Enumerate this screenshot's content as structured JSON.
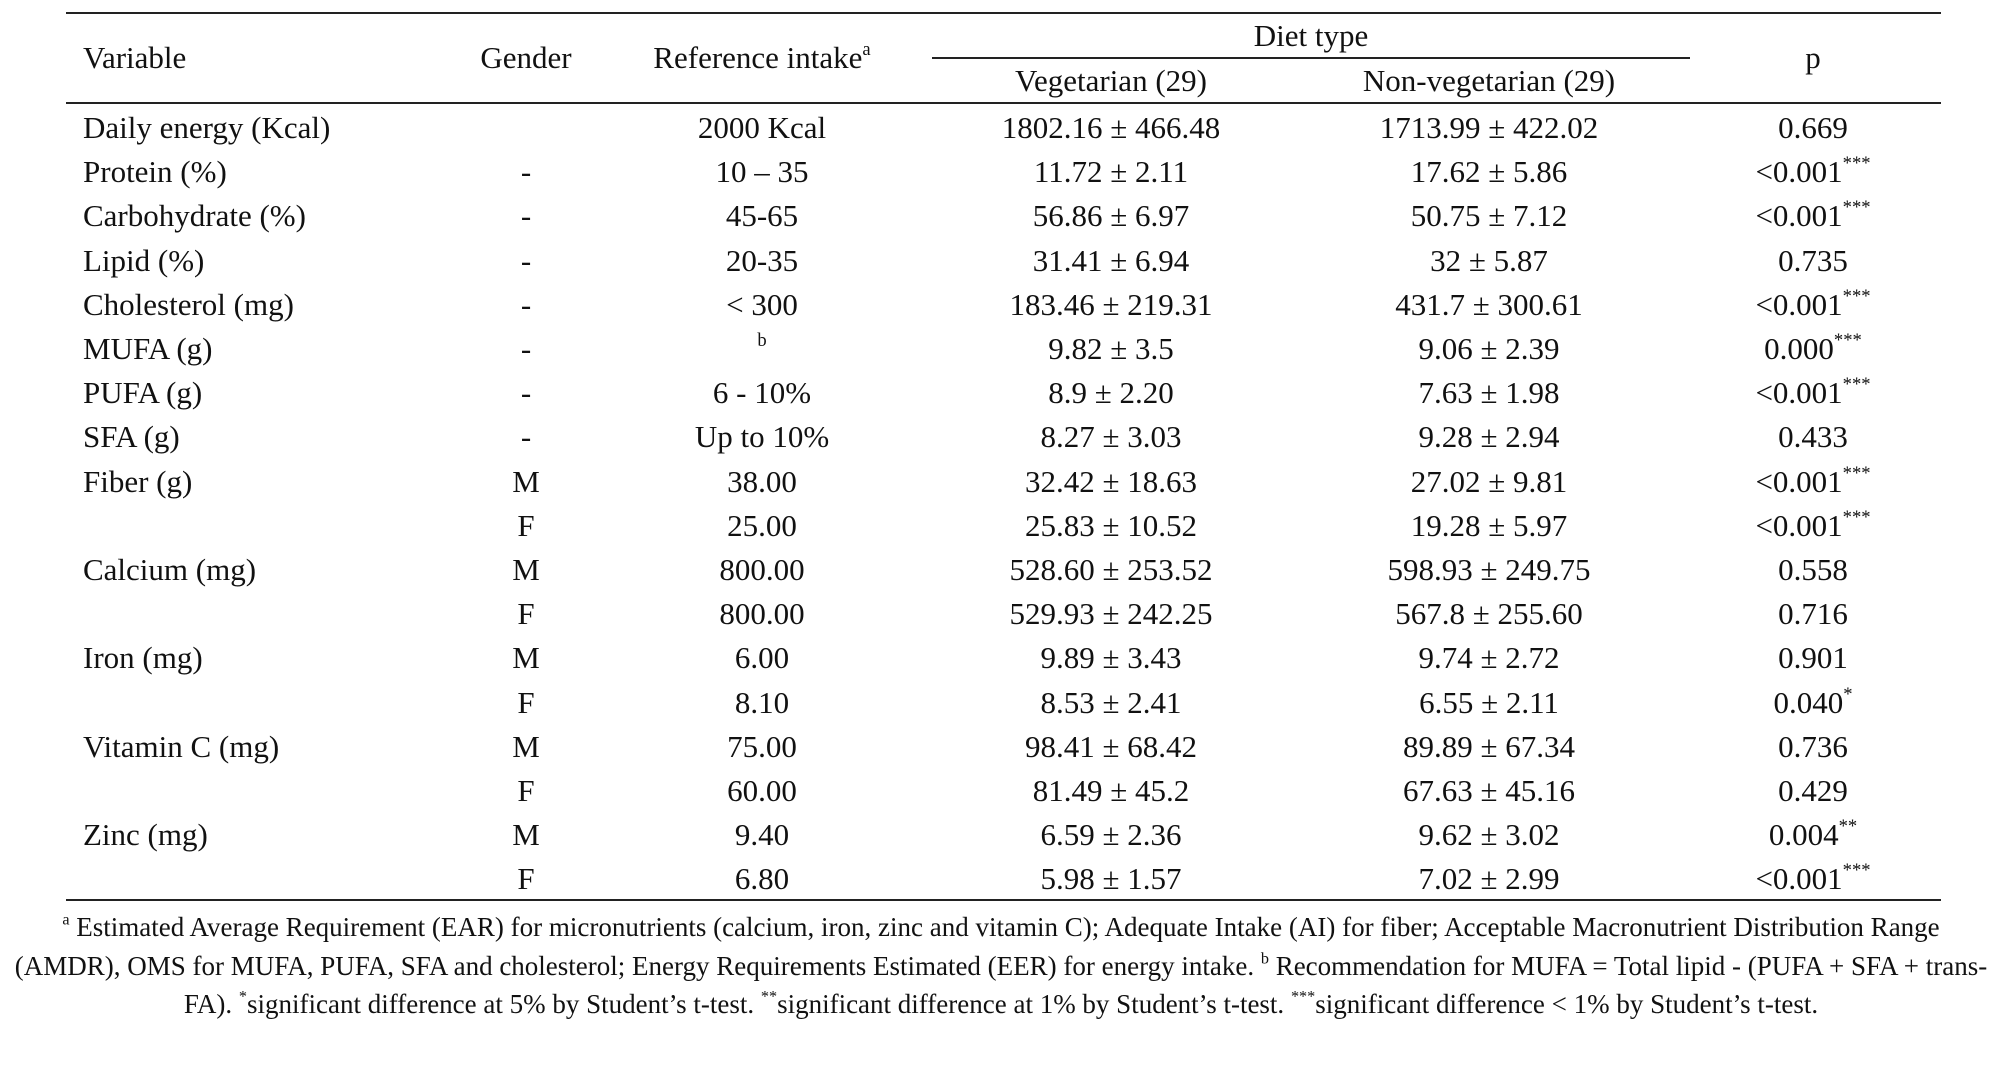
{
  "table": {
    "header": {
      "variable": "Variable",
      "gender": "Gender",
      "reference": {
        "text": "Reference intake",
        "sup": "a"
      },
      "group": "Diet type",
      "vegetarian": "Vegetarian (29)",
      "non_vegetarian": "Non-vegetarian (29)",
      "p": "p"
    },
    "rows": [
      [
        "Daily energy (Kcal)",
        null,
        "2000 Kcal",
        "1802.16 ± 466.48",
        "1713.99 ± 422.02",
        "0.669"
      ],
      [
        "Protein (%)",
        "-",
        "10 – 35",
        "11.72 ± 2.11",
        "17.62 ± 5.86",
        {
          "text": "<0.001",
          "sup": "***"
        }
      ],
      [
        "Carbohydrate (%)",
        "-",
        "45-65",
        "56.86 ± 6.97",
        "50.75 ± 7.12",
        {
          "text": "<0.001",
          "sup": "***"
        }
      ],
      [
        "Lipid (%)",
        "-",
        "20-35",
        "31.41 ± 6.94",
        "32 ± 5.87",
        "0.735"
      ],
      [
        "Cholesterol (mg)",
        "-",
        "< 300",
        "183.46 ± 219.31",
        "431.7 ± 300.61",
        {
          "text": "<0.001",
          "sup": "***"
        }
      ],
      [
        "MUFA (g)",
        "-",
        {
          "sup": "b"
        },
        "9.82 ± 3.5",
        "9.06 ± 2.39",
        {
          "text": "0.000",
          "sup": "***"
        }
      ],
      [
        "PUFA (g)",
        "-",
        "6 - 10%",
        "8.9 ± 2.20",
        "7.63 ± 1.98",
        {
          "text": "<0.001",
          "sup": "***"
        }
      ],
      [
        "SFA (g)",
        "-",
        "Up to 10%",
        "8.27 ± 3.03",
        "9.28 ± 2.94",
        "0.433"
      ],
      [
        "Fiber (g)",
        "M",
        "38.00",
        "32.42 ± 18.63",
        "27.02 ± 9.81",
        {
          "text": "<0.001",
          "sup": "***"
        }
      ],
      [
        null,
        "F",
        "25.00",
        "25.83 ± 10.52",
        "19.28 ± 5.97",
        {
          "text": "<0.001",
          "sup": "***"
        }
      ],
      [
        "Calcium (mg)",
        "M",
        "800.00",
        "528.60 ± 253.52",
        "598.93 ± 249.75",
        "0.558"
      ],
      [
        null,
        "F",
        "800.00",
        "529.93 ± 242.25",
        "567.8 ± 255.60",
        "0.716"
      ],
      [
        "Iron (mg)",
        "M",
        "6.00",
        "9.89 ± 3.43",
        "9.74 ± 2.72",
        "0.901"
      ],
      [
        null,
        "F",
        "8.10",
        "8.53 ± 2.41",
        "6.55 ± 2.11",
        {
          "text": "0.040",
          "sup": "*"
        }
      ],
      [
        "Vitamin C (mg)",
        "M",
        "75.00",
        "98.41 ± 68.42",
        "89.89 ± 67.34",
        "0.736"
      ],
      [
        null,
        "F",
        "60.00",
        "81.49 ± 45.2",
        "67.63 ± 45.16",
        "0.429"
      ],
      [
        "Zinc (mg)",
        "M",
        "9.40",
        "6.59 ± 2.36",
        "9.62 ± 3.02",
        {
          "text": "0.004",
          "sup": "**"
        }
      ],
      [
        null,
        "F",
        "6.80",
        "5.98 ± 1.57",
        "7.02 ± 2.99",
        {
          "text": "<0.001",
          "sup": "***"
        }
      ]
    ]
  },
  "footnote": [
    {
      "sup": "a",
      "text": " Estimated Average Requirement (EAR) for micronutrients (calcium, iron, zinc and vitamin C); Adequate Intake (AI) for fiber; Acceptable Macronutrient Distribution Range (AMDR), OMS for MUFA, PUFA, SFA and cholesterol; Energy Requirements Estimated (EER) for energy intake. "
    },
    {
      "sup": "b",
      "text": " Recommendation for MUFA = Total lipid - (PUFA + SFA + trans-FA). "
    },
    {
      "sup": "*",
      "text": "significant difference at 5% by Student’s t-test. "
    },
    {
      "sup": "**",
      "text": "significant difference at 1% by Student’s t-test. "
    },
    {
      "sup": "***",
      "text": "significant difference < 1% by Student’s t-test."
    }
  ]
}
